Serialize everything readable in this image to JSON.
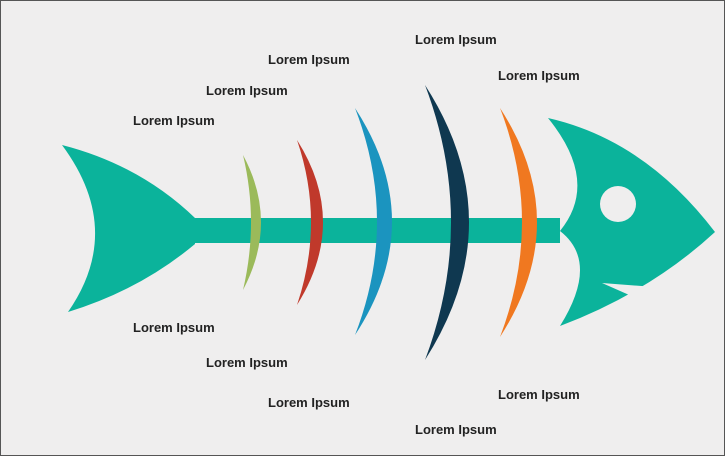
{
  "labels": {
    "top": [
      "Lorem Ipsum",
      "Lorem Ipsum",
      "Lorem Ipsum",
      "Lorem Ipsum",
      "Lorem Ipsum"
    ],
    "bottom": [
      "Lorem Ipsum",
      "Lorem Ipsum",
      "Lorem Ipsum",
      "Lorem Ipsum",
      "Lorem Ipsum"
    ]
  }
}
